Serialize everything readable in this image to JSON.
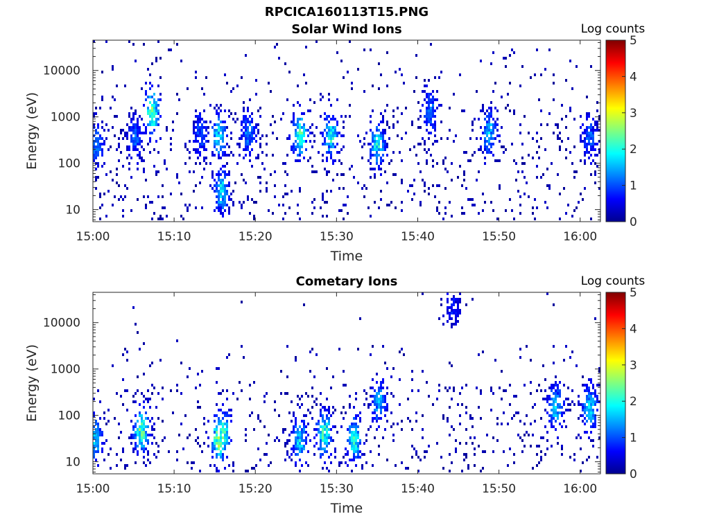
{
  "figure": {
    "title": "RPCICA160113T15.PNG"
  },
  "colors": {
    "colormap": [
      "#00008f",
      "#0000ff",
      "#0080ff",
      "#00ffff",
      "#80ff80",
      "#ffff00",
      "#ff8000",
      "#ff0000",
      "#800000"
    ],
    "axis": "#262626",
    "background": "#ffffff"
  },
  "chart_data": [
    {
      "type": "heatmap",
      "title": "Solar Wind Ions",
      "xlabel": "Time",
      "ylabel": "Energy (eV)",
      "x_ticks": [
        "15:00",
        "15:10",
        "15:20",
        "15:30",
        "15:40",
        "15:50",
        "16:00"
      ],
      "x_range_minutes": [
        0,
        62.5
      ],
      "y_scale": "log",
      "y_ticks": [
        "10",
        "100",
        "1000",
        "10000"
      ],
      "y_range": [
        5.5,
        45000
      ],
      "colorbar": {
        "title": "Log counts",
        "ticks": [
          "0",
          "1",
          "2",
          "3",
          "4",
          "5"
        ],
        "range": [
          0,
          5
        ]
      },
      "activity_profile": [
        {
          "minute": 0.5,
          "energy": 250,
          "log_counts": 1.2
        },
        {
          "minute": 5.2,
          "energy": 350,
          "log_counts": 1.0
        },
        {
          "minute": 7.3,
          "energy": 1300,
          "log_counts": 2.6
        },
        {
          "minute": 13.3,
          "energy": 400,
          "log_counts": 1.0
        },
        {
          "minute": 15.5,
          "energy": 400,
          "log_counts": 1.8
        },
        {
          "minute": 15.8,
          "energy": 25,
          "log_counts": 1.7
        },
        {
          "minute": 19.2,
          "energy": 450,
          "log_counts": 1.2
        },
        {
          "minute": 25.5,
          "energy": 400,
          "log_counts": 2.3
        },
        {
          "minute": 29.3,
          "energy": 400,
          "log_counts": 2.0
        },
        {
          "minute": 35.0,
          "energy": 250,
          "log_counts": 1.9
        },
        {
          "minute": 41.5,
          "energy": 1300,
          "log_counts": 1.2
        },
        {
          "minute": 48.8,
          "energy": 450,
          "log_counts": 1.6
        },
        {
          "minute": 61.2,
          "energy": 350,
          "log_counts": 1.0
        }
      ]
    },
    {
      "type": "heatmap",
      "title": "Cometary Ions",
      "xlabel": "Time",
      "ylabel": "Energy (eV)",
      "x_ticks": [
        "15:00",
        "15:10",
        "15:20",
        "15:30",
        "15:40",
        "15:50",
        "16:00"
      ],
      "x_range_minutes": [
        0,
        62.5
      ],
      "y_scale": "log",
      "y_ticks": [
        "10",
        "100",
        "1000",
        "10000"
      ],
      "y_range": [
        5.5,
        45000
      ],
      "colorbar": {
        "title": "Log counts",
        "ticks": [
          "0",
          "1",
          "2",
          "3",
          "4",
          "5"
        ],
        "range": [
          0,
          5
        ]
      },
      "activity_profile": [
        {
          "minute": 0.3,
          "energy": 30,
          "log_counts": 1.6
        },
        {
          "minute": 6.0,
          "energy": 50,
          "log_counts": 2.5
        },
        {
          "minute": 15.5,
          "energy": 30,
          "log_counts": 2.7
        },
        {
          "minute": 16.0,
          "energy": 40,
          "log_counts": 2.3
        },
        {
          "minute": 25.5,
          "energy": 30,
          "log_counts": 1.8
        },
        {
          "minute": 28.5,
          "energy": 40,
          "log_counts": 2.2
        },
        {
          "minute": 32.2,
          "energy": 30,
          "log_counts": 2.0
        },
        {
          "minute": 35.2,
          "energy": 200,
          "log_counts": 1.5
        },
        {
          "minute": 44.3,
          "energy": 22000,
          "log_counts": 0.6
        },
        {
          "minute": 57.0,
          "energy": 150,
          "log_counts": 1.7
        },
        {
          "minute": 61.2,
          "energy": 150,
          "log_counts": 1.8
        }
      ]
    }
  ]
}
